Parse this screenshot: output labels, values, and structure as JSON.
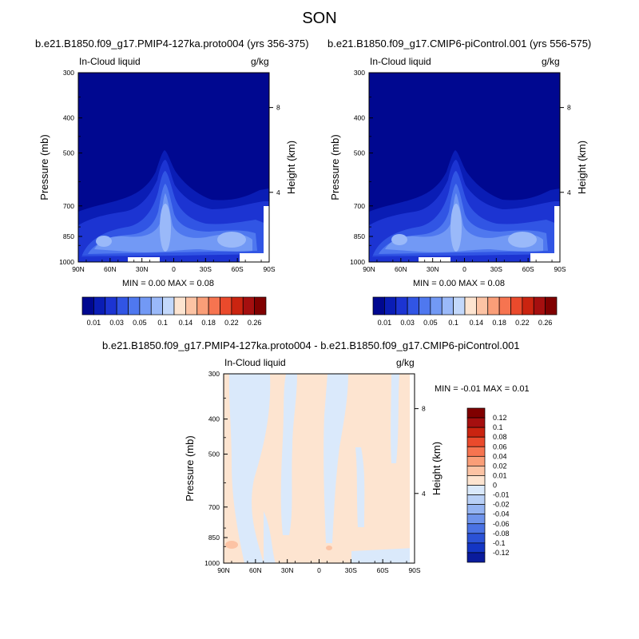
{
  "page_title": "SON",
  "colors": {
    "deep_blue": "#000890",
    "top_palette": [
      "#000890",
      "#0a1db5",
      "#1c34d2",
      "#3155e4",
      "#4f78ef",
      "#7299f5",
      "#9ab9f9",
      "#c3d8fb",
      "#fde4d0",
      "#fcc3a4",
      "#fa9e78",
      "#f67450",
      "#ea4a2c",
      "#ca2410",
      "#a50f0f",
      "#800000"
    ],
    "diff_palette": [
      "#800000",
      "#a50f0f",
      "#ca2410",
      "#ea4a2c",
      "#f67450",
      "#fa9e78",
      "#fcc3a4",
      "#fde4d0",
      "#dae9fb",
      "#b9d0f6",
      "#95b4f2",
      "#6f94ec",
      "#4a72e4",
      "#2b52d6",
      "#1436c4",
      "#0a1b9c"
    ]
  },
  "panels": [
    {
      "title": "b.e21.B1850.f09_g17.PMIP4-127ka.proto004 (yrs 356-375)",
      "left_label": "In-Cloud liquid",
      "right_label": "g/kg",
      "stats": "MIN =   0.00  MAX =   0.08"
    },
    {
      "title": "b.e21.B1850.f09_g17.CMIP6-piControl.001 (yrs 556-575)",
      "left_label": "In-Cloud liquid",
      "right_label": "g/kg",
      "stats": "MIN =   0.00  MAX =   0.08"
    },
    {
      "title": "b.e21.B1850.f09_g17.PMIP4-127ka.proto004 - b.e21.B1850.f09_g17.CMIP6-piControl.001",
      "left_label": "In-Cloud liquid",
      "right_label": "g/kg",
      "stats": "MIN =  -0.01  MAX =   0.01"
    }
  ],
  "axes": {
    "y_title": "Pressure (mb)",
    "y2_title": "Height (km)",
    "y_ticks": [
      "300",
      "400",
      "500",
      "700",
      "850",
      "1000"
    ],
    "y2_ticks": [
      "8",
      "4"
    ],
    "x_ticks": [
      "90N",
      "60N",
      "30N",
      "0",
      "30S",
      "60S",
      "90S"
    ]
  },
  "colorbars": {
    "top_labels": [
      "0.01",
      "0.03",
      "0.05",
      "0.1",
      "0.14",
      "0.18",
      "0.22",
      "0.26"
    ],
    "diff_labels": [
      "0.12",
      "0.1",
      "0.08",
      "0.06",
      "0.04",
      "0.02",
      "0.01",
      "0",
      "-0.01",
      "-0.02",
      "-0.04",
      "-0.06",
      "-0.08",
      "-0.1",
      "-0.12"
    ]
  },
  "chart_data": [
    {
      "type": "heatmap",
      "title": "b.e21.B1850.f09_g17.PMIP4-127ka.proto004 (yrs 356-375)",
      "variable": "In-Cloud liquid",
      "units": "g/kg",
      "xlabel": "",
      "ylabel": "Pressure (mb)",
      "y2label": "Height (km)",
      "x_range": [
        "90N",
        "90S"
      ],
      "y_range": [
        1000,
        300
      ],
      "x": [
        "90N",
        "60N",
        "30N",
        "0",
        "30S",
        "60S",
        "90S"
      ],
      "y": [
        1000,
        850,
        700,
        500,
        400,
        300
      ],
      "approx_max_locations": [
        {
          "lat": "5N",
          "pressure": 850,
          "value": 0.08
        },
        {
          "lat": "60S",
          "pressure": 850,
          "value": 0.06
        },
        {
          "lat": "60N",
          "pressure": 850,
          "value": 0.05
        }
      ],
      "levels": [
        0.01,
        0.02,
        0.03,
        0.04,
        0.05,
        0.06,
        0.08,
        0.1,
        0.12,
        0.14,
        0.16,
        0.18,
        0.2,
        0.22,
        0.24,
        0.26
      ],
      "min": 0.0,
      "max": 0.08
    },
    {
      "type": "heatmap",
      "title": "b.e21.B1850.f09_g17.CMIP6-piControl.001 (yrs 556-575)",
      "variable": "In-Cloud liquid",
      "units": "g/kg",
      "xlabel": "",
      "ylabel": "Pressure (mb)",
      "y2label": "Height (km)",
      "x_range": [
        "90N",
        "90S"
      ],
      "y_range": [
        1000,
        300
      ],
      "x": [
        "90N",
        "60N",
        "30N",
        "0",
        "30S",
        "60S",
        "90S"
      ],
      "y": [
        1000,
        850,
        700,
        500,
        400,
        300
      ],
      "approx_max_locations": [
        {
          "lat": "5N",
          "pressure": 850,
          "value": 0.08
        },
        {
          "lat": "60S",
          "pressure": 850,
          "value": 0.06
        },
        {
          "lat": "60N",
          "pressure": 850,
          "value": 0.05
        }
      ],
      "levels": [
        0.01,
        0.02,
        0.03,
        0.04,
        0.05,
        0.06,
        0.08,
        0.1,
        0.12,
        0.14,
        0.16,
        0.18,
        0.2,
        0.22,
        0.24,
        0.26
      ],
      "min": 0.0,
      "max": 0.08
    },
    {
      "type": "heatmap",
      "title": "b.e21.B1850.f09_g17.PMIP4-127ka.proto004 - b.e21.B1850.f09_g17.CMIP6-piControl.001",
      "variable": "In-Cloud liquid",
      "units": "g/kg",
      "xlabel": "",
      "ylabel": "Pressure (mb)",
      "y2label": "Height (km)",
      "x_range": [
        "90N",
        "90S"
      ],
      "y_range": [
        1000,
        300
      ],
      "x": [
        "90N",
        "60N",
        "30N",
        "0",
        "30S",
        "60S",
        "90S"
      ],
      "y": [
        1000,
        850,
        700,
        500,
        400,
        300
      ],
      "dominant_values": {
        "most_area": 0.01,
        "bands": -0.01
      },
      "levels": [
        -0.12,
        -0.1,
        -0.08,
        -0.06,
        -0.04,
        -0.02,
        -0.01,
        0,
        0.01,
        0.02,
        0.04,
        0.06,
        0.08,
        0.1,
        0.12
      ],
      "min": -0.01,
      "max": 0.01
    }
  ]
}
